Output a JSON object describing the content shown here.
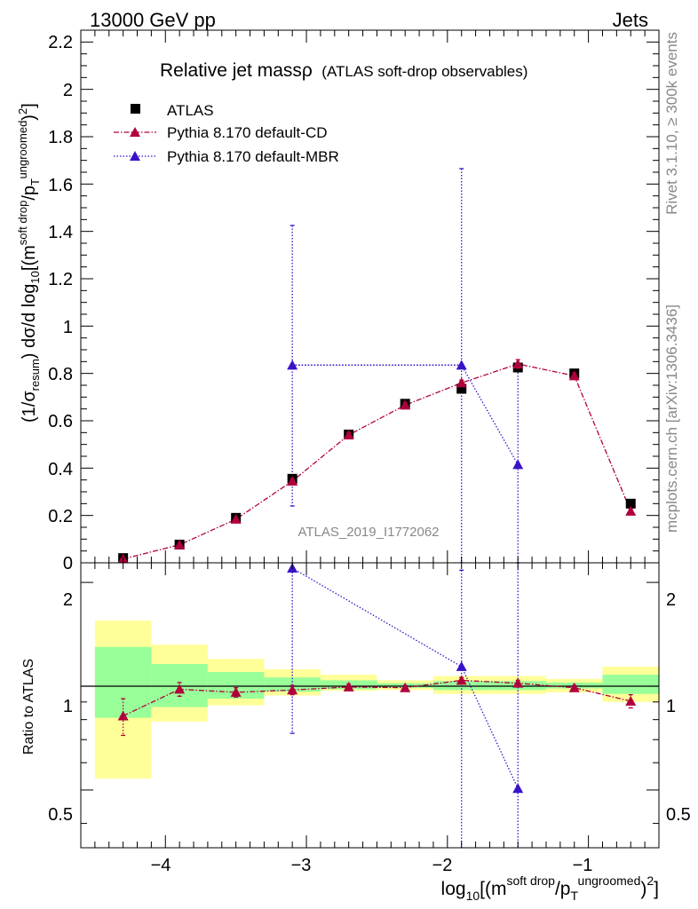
{
  "header": {
    "left": "13000 GeV pp",
    "right": "Jets"
  },
  "side_text": {
    "rivet": "Rivet 3.1.10, ≥ 300k events",
    "mcplots": "mcplots.cern.ch [arXiv:1306.3436]"
  },
  "chart_data": [
    {
      "type": "scatter",
      "panel": "main",
      "title": "Relative jet massρ",
      "subtitle": "(ATLAS soft-drop observables)",
      "analysis_label": "ATLAS_2019_I1772062",
      "ylabel": "(1/σresum) dσ/d log10[(m soft drop / pT ungroomed)2]",
      "xlim": [
        -4.6,
        -0.5
      ],
      "ylim": [
        0,
        2.25
      ],
      "ytick_labels": [
        "0",
        "0.2",
        "0.4",
        "0.6",
        "0.8",
        "1",
        "1.2",
        "1.4",
        "1.6",
        "1.8",
        "2",
        "2.2"
      ],
      "legend": [
        "ATLAS",
        "Pythia 8.170 default-CD",
        "Pythia 8.170 default-MBR"
      ],
      "series": [
        {
          "name": "ATLAS",
          "color": "#000000",
          "x": [
            -4.3,
            -3.9,
            -3.5,
            -3.1,
            -2.7,
            -2.3,
            -1.9,
            -1.5,
            -1.1,
            -0.7
          ],
          "y": [
            0.02,
            0.077,
            0.19,
            0.355,
            0.542,
            0.672,
            0.735,
            0.825,
            0.8,
            0.25
          ]
        },
        {
          "name": "Pythia 8.170 default-CD",
          "color": "#b0003c",
          "x": [
            -4.3,
            -3.9,
            -3.5,
            -3.1,
            -2.7,
            -2.3,
            -1.9,
            -1.5,
            -1.1,
            -0.7
          ],
          "y": [
            0.016,
            0.076,
            0.184,
            0.345,
            0.54,
            0.666,
            0.76,
            0.84,
            0.79,
            0.218
          ],
          "yerr": [
            0.003,
            0.004,
            0.006,
            0.01,
            0.01,
            0.012,
            0.012,
            0.018,
            0.012,
            0.01
          ]
        },
        {
          "name": "Pythia 8.170 default-MBR",
          "color": "#3a12c8",
          "x": [
            -3.1,
            -1.9,
            -1.5
          ],
          "y": [
            0.835,
            0.835,
            0.415
          ],
          "yerr_low": [
            0.595,
            0.835,
            0.415
          ],
          "yerr_high": [
            0.59,
            0.83,
            0.415
          ],
          "xerr_lines": [
            [
              -3.1,
              -1.9,
              0.835
            ]
          ]
        }
      ]
    },
    {
      "type": "scatter",
      "panel": "ratio",
      "ylabel": "Ratio to ATLAS",
      "xlabel": "log10[(m soft drop / pT ungroomed)2]",
      "xlim": [
        -4.6,
        -0.5
      ],
      "ylim": [
        0.34,
        2.28
      ],
      "xtick_labels": [
        "−4",
        "−3",
        "−2",
        "−1"
      ],
      "ytick_labels": [
        "0.5",
        "1",
        "2"
      ],
      "bands": {
        "x_edges": [
          -4.5,
          -4.1,
          -3.7,
          -3.3,
          -2.9,
          -2.5,
          -2.1,
          -1.7,
          -1.3,
          -0.9,
          -0.5
        ],
        "yellow_low": [
          0.54,
          0.79,
          0.88,
          0.94,
          0.97,
          0.975,
          0.95,
          0.95,
          0.96,
          0.9
        ],
        "yellow_high": [
          1.55,
          1.32,
          1.2,
          1.12,
          1.08,
          1.04,
          1.07,
          1.07,
          1.05,
          1.14
        ],
        "green_low": [
          0.81,
          0.87,
          0.92,
          0.965,
          0.98,
          0.99,
          0.975,
          0.975,
          0.985,
          0.95
        ],
        "green_high": [
          1.3,
          1.16,
          1.1,
          1.06,
          1.04,
          1.02,
          1.035,
          1.035,
          1.025,
          1.08
        ]
      },
      "series": [
        {
          "name": "Pythia 8.170 default-CD",
          "color": "#b0003c",
          "x": [
            -4.3,
            -3.9,
            -3.5,
            -3.1,
            -2.7,
            -2.3,
            -1.9,
            -1.5,
            -1.1,
            -0.7
          ],
          "y": [
            0.82,
            0.98,
            0.96,
            0.975,
            0.995,
            0.99,
            1.04,
            1.02,
            0.99,
            0.905
          ],
          "yerr": [
            0.1,
            0.045,
            0.03,
            0.03,
            0.02,
            0.015,
            0.02,
            0.02,
            0.015,
            0.04
          ]
        },
        {
          "name": "Pythia 8.170 default-MBR",
          "color": "#3a12c8",
          "x": [
            -3.1,
            -1.9,
            -1.5
          ],
          "y": [
            2.2,
            1.14,
            0.505
          ],
          "err_low_to": [
            0.73,
            0.3,
            0.3
          ],
          "err_high_to": [
            2.28,
            2.17,
            2.28
          ]
        }
      ]
    }
  ]
}
